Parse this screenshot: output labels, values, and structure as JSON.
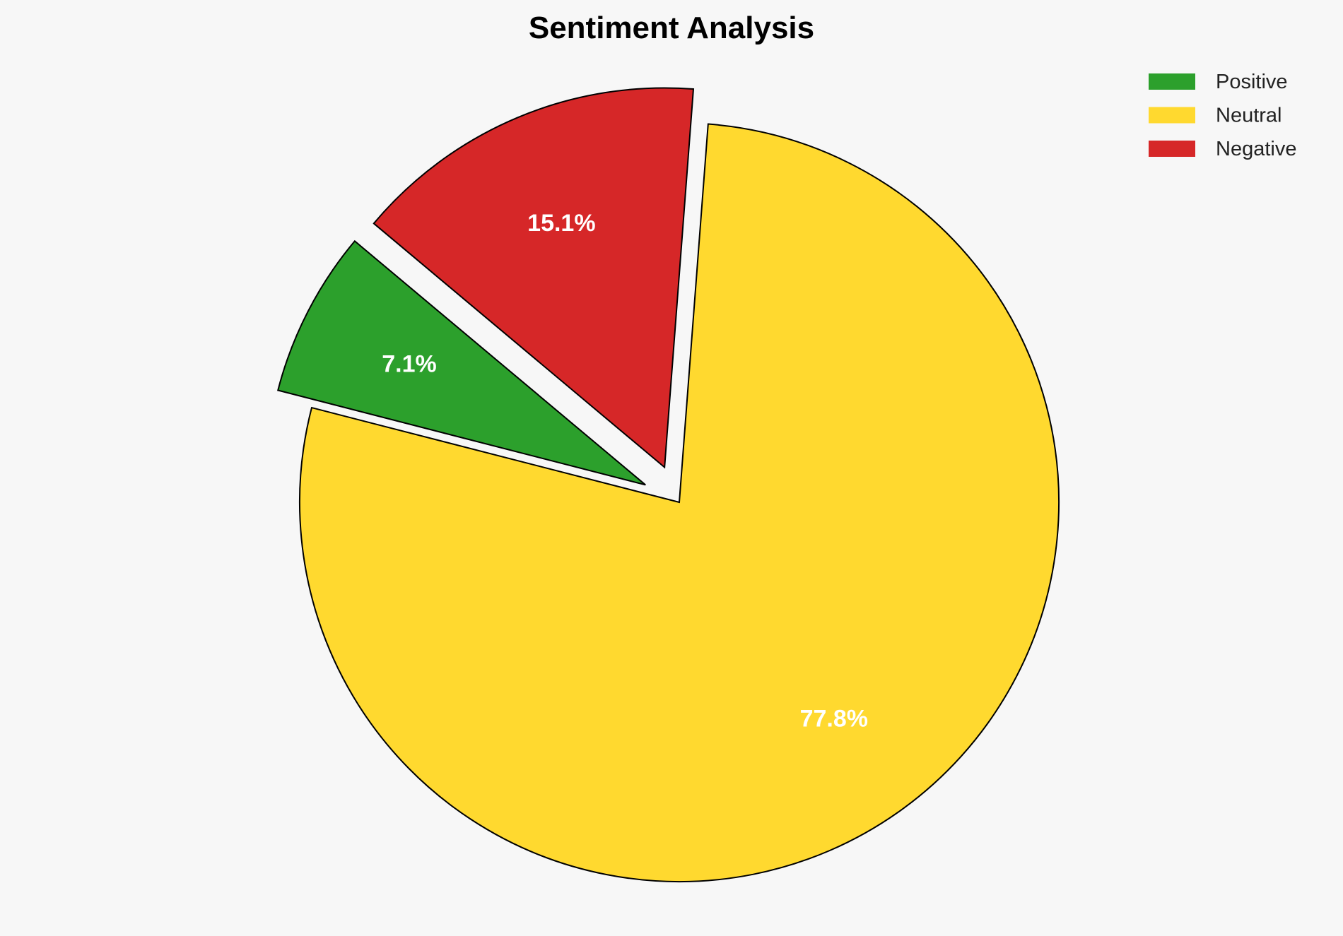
{
  "chart_data": {
    "type": "pie",
    "title": "Sentiment Analysis",
    "labels": [
      "Positive",
      "Neutral",
      "Negative"
    ],
    "values": [
      7.1,
      77.8,
      15.1
    ],
    "value_labels": [
      "7.1%",
      "77.8%",
      "15.1%"
    ],
    "colors": [
      "#2ca02c",
      "#ffd92f",
      "#d62728"
    ],
    "explode": [
      0.1,
      0,
      0.1
    ],
    "start_angle_deg": 140,
    "direction": "counterclockwise",
    "edge_color": "#000000",
    "legend_position": "top-right"
  }
}
